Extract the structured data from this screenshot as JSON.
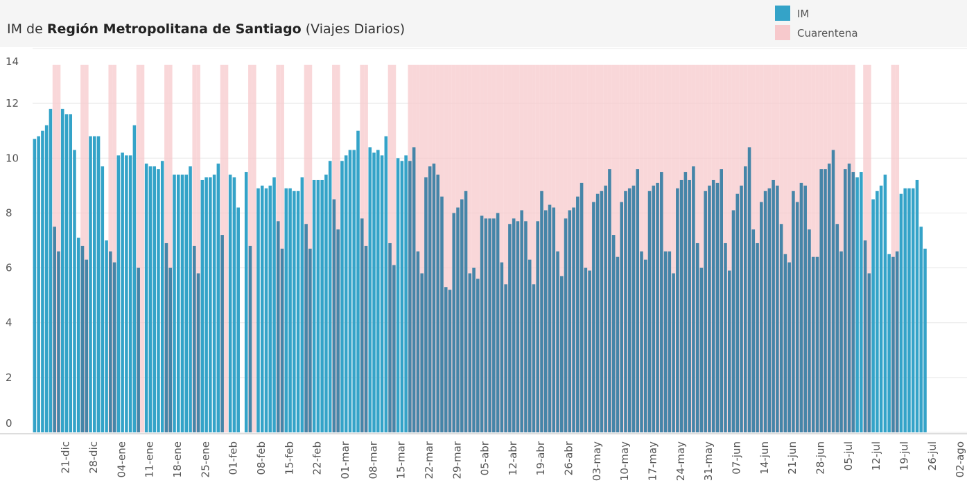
{
  "chart_data": {
    "type": "bar",
    "title": {
      "prefix": "IM de",
      "region": "Región Metropolitana de Santiago",
      "suffix": "(Viajes Diarios)"
    },
    "categories": [
      null,
      null,
      null,
      null,
      null,
      null,
      null,
      "21-dic",
      null,
      null,
      null,
      null,
      null,
      null,
      "28-dic",
      null,
      null,
      null,
      null,
      null,
      null,
      "04-ene",
      null,
      null,
      null,
      null,
      null,
      null,
      "11-ene",
      null,
      null,
      null,
      null,
      null,
      null,
      "18-ene",
      null,
      null,
      null,
      null,
      null,
      null,
      "25-ene",
      null,
      null,
      null,
      null,
      null,
      null,
      "01-feb",
      null,
      null,
      null,
      null,
      null,
      null,
      "08-feb",
      null,
      null,
      null,
      null,
      null,
      null,
      "15-feb",
      null,
      null,
      null,
      null,
      null,
      null,
      "22-feb",
      null,
      null,
      null,
      null,
      null,
      null,
      "01-mar",
      null,
      null,
      null,
      null,
      null,
      null,
      "08-mar",
      null,
      null,
      null,
      null,
      null,
      null,
      "15-mar",
      null,
      null,
      null,
      null,
      null,
      null,
      "22-mar",
      null,
      null,
      null,
      null,
      null,
      null,
      "29-mar",
      null,
      null,
      null,
      null,
      null,
      null,
      "05-abr",
      null,
      null,
      null,
      null,
      null,
      null,
      "12-abr",
      null,
      null,
      null,
      null,
      null,
      null,
      "19-abr",
      null,
      null,
      null,
      null,
      null,
      null,
      "26-abr",
      null,
      null,
      null,
      null,
      null,
      null,
      "03-may",
      null,
      null,
      null,
      null,
      null,
      null,
      "10-may",
      null,
      null,
      null,
      null,
      null,
      null,
      "17-may",
      null,
      null,
      null,
      null,
      null,
      null,
      "24-may",
      null,
      null,
      null,
      null,
      null,
      null,
      "31-may",
      null,
      null,
      null,
      null,
      null,
      null,
      "07-jun",
      null,
      null,
      null,
      null,
      null,
      null,
      "14-jun",
      null,
      null,
      null,
      null,
      null,
      null,
      "21-jun",
      null,
      null,
      null,
      null,
      null,
      null,
      "28-jun",
      null,
      null,
      null,
      null,
      null,
      null,
      "05-jul",
      null,
      null,
      null,
      null,
      null,
      null,
      "12-jul",
      null,
      null,
      null,
      null,
      null,
      null,
      "19-jul",
      null,
      null,
      null,
      null,
      null,
      null,
      "26-jul",
      null,
      null,
      null,
      null,
      null,
      null,
      "02-ago",
      null,
      null
    ],
    "series": [
      {
        "name": "IM",
        "color": "#34a3c8",
        "overlap_color": "#4585a8",
        "values": [
          10.7,
          10.8,
          11.0,
          11.2,
          11.8,
          7.5,
          6.6,
          11.8,
          11.6,
          11.6,
          10.3,
          7.1,
          6.8,
          6.3,
          10.8,
          10.8,
          10.8,
          9.7,
          7.0,
          6.6,
          6.2,
          10.1,
          10.2,
          10.1,
          10.1,
          11.2,
          6.0,
          null,
          9.8,
          9.7,
          9.7,
          9.6,
          9.9,
          6.9,
          6.0,
          9.4,
          9.4,
          9.4,
          9.4,
          9.7,
          6.8,
          5.8,
          9.2,
          9.3,
          9.3,
          9.4,
          9.8,
          7.2,
          null,
          9.4,
          9.3,
          8.2,
          null,
          9.5,
          6.8,
          null,
          8.9,
          9.0,
          8.9,
          9.0,
          9.3,
          7.7,
          6.7,
          8.9,
          8.9,
          8.8,
          8.8,
          9.3,
          7.6,
          6.7,
          9.2,
          9.2,
          9.2,
          9.4,
          9.9,
          8.5,
          7.4,
          9.9,
          10.1,
          10.3,
          10.3,
          11.0,
          7.8,
          6.8,
          10.4,
          10.2,
          10.3,
          10.1,
          10.8,
          6.9,
          6.1,
          10.0,
          9.9,
          10.1,
          9.9,
          10.4,
          6.6,
          5.8,
          9.3,
          9.7,
          9.8,
          9.4,
          8.6,
          5.3,
          5.2,
          8.0,
          8.2,
          8.5,
          8.8,
          5.8,
          6.0,
          5.6,
          7.9,
          7.8,
          7.8,
          7.8,
          8.0,
          6.2,
          5.4,
          7.6,
          7.8,
          7.7,
          8.1,
          7.7,
          6.3,
          5.4,
          7.7,
          8.8,
          8.1,
          8.3,
          8.2,
          6.6,
          5.7,
          7.8,
          8.1,
          8.2,
          8.6,
          9.1,
          6.0,
          5.9,
          8.4,
          8.7,
          8.8,
          9.0,
          9.6,
          7.2,
          6.4,
          8.4,
          8.8,
          8.9,
          9.0,
          9.6,
          6.6,
          6.3,
          8.8,
          9.0,
          9.1,
          9.5,
          6.6,
          6.6,
          5.8,
          8.9,
          9.2,
          9.5,
          9.2,
          9.7,
          6.9,
          6.0,
          8.8,
          9.0,
          9.2,
          9.1,
          9.6,
          6.9,
          5.9,
          8.1,
          8.7,
          9.0,
          9.7,
          10.4,
          7.4,
          6.9,
          8.4,
          8.8,
          8.9,
          9.2,
          9.0,
          7.6,
          6.5,
          6.2,
          8.8,
          8.4,
          9.1,
          9.0,
          7.4,
          6.4,
          6.4,
          9.6,
          9.6,
          9.8,
          10.3,
          7.6,
          6.6,
          9.6,
          9.8,
          9.5,
          9.3,
          9.5,
          7.0,
          5.8,
          8.5,
          8.8,
          9.0,
          9.4,
          6.5,
          6.4,
          6.6,
          8.7,
          8.9,
          8.9,
          8.9,
          9.2,
          7.5,
          6.7,
          null,
          null,
          null,
          null,
          null,
          null,
          null,
          null,
          null,
          null
        ]
      },
      {
        "name": "Cuarentena",
        "color": "#f7c9cc",
        "values": [
          null,
          null,
          null,
          null,
          null,
          13.4,
          13.4,
          null,
          null,
          null,
          null,
          null,
          13.4,
          13.4,
          null,
          null,
          null,
          null,
          null,
          13.4,
          13.4,
          null,
          null,
          null,
          null,
          null,
          13.4,
          13.4,
          null,
          null,
          null,
          null,
          null,
          13.4,
          13.4,
          null,
          null,
          null,
          null,
          null,
          13.4,
          13.4,
          null,
          null,
          null,
          null,
          null,
          13.4,
          13.4,
          null,
          null,
          null,
          null,
          null,
          13.4,
          13.4,
          null,
          null,
          null,
          null,
          null,
          13.4,
          13.4,
          null,
          null,
          null,
          null,
          null,
          13.4,
          13.4,
          null,
          null,
          null,
          null,
          null,
          13.4,
          13.4,
          null,
          null,
          null,
          null,
          null,
          13.4,
          13.4,
          null,
          null,
          null,
          null,
          null,
          13.4,
          13.4,
          null,
          null,
          null,
          13.4,
          13.4,
          13.4,
          13.4,
          13.4,
          13.4,
          13.4,
          13.4,
          13.4,
          13.4,
          13.4,
          13.4,
          13.4,
          13.4,
          13.4,
          13.4,
          13.4,
          13.4,
          13.4,
          13.4,
          13.4,
          13.4,
          13.4,
          13.4,
          13.4,
          13.4,
          13.4,
          13.4,
          13.4,
          13.4,
          13.4,
          13.4,
          13.4,
          13.4,
          13.4,
          13.4,
          13.4,
          13.4,
          13.4,
          13.4,
          13.4,
          13.4,
          13.4,
          13.4,
          13.4,
          13.4,
          13.4,
          13.4,
          13.4,
          13.4,
          13.4,
          13.4,
          13.4,
          13.4,
          13.4,
          13.4,
          13.4,
          13.4,
          13.4,
          13.4,
          13.4,
          13.4,
          13.4,
          13.4,
          13.4,
          13.4,
          13.4,
          13.4,
          13.4,
          13.4,
          13.4,
          13.4,
          13.4,
          13.4,
          13.4,
          13.4,
          13.4,
          13.4,
          13.4,
          13.4,
          13.4,
          13.4,
          13.4,
          13.4,
          13.4,
          13.4,
          13.4,
          13.4,
          13.4,
          13.4,
          13.4,
          13.4,
          13.4,
          13.4,
          13.4,
          13.4,
          13.4,
          13.4,
          13.4,
          13.4,
          13.4,
          13.4,
          13.4,
          13.4,
          13.4,
          13.4,
          13.4,
          13.4,
          13.4,
          13.4,
          13.4,
          13.4,
          null,
          null,
          13.4,
          13.4,
          null,
          null,
          null,
          null,
          null,
          13.4,
          13.4,
          null,
          null,
          null,
          null,
          null,
          null,
          null,
          null,
          null,
          null,
          null,
          null,
          null,
          null,
          null,
          null,
          null
        ]
      }
    ],
    "ylim": [
      0,
      14
    ],
    "yticks": [
      0,
      2,
      4,
      6,
      8,
      10,
      12,
      14
    ],
    "grid": true
  }
}
